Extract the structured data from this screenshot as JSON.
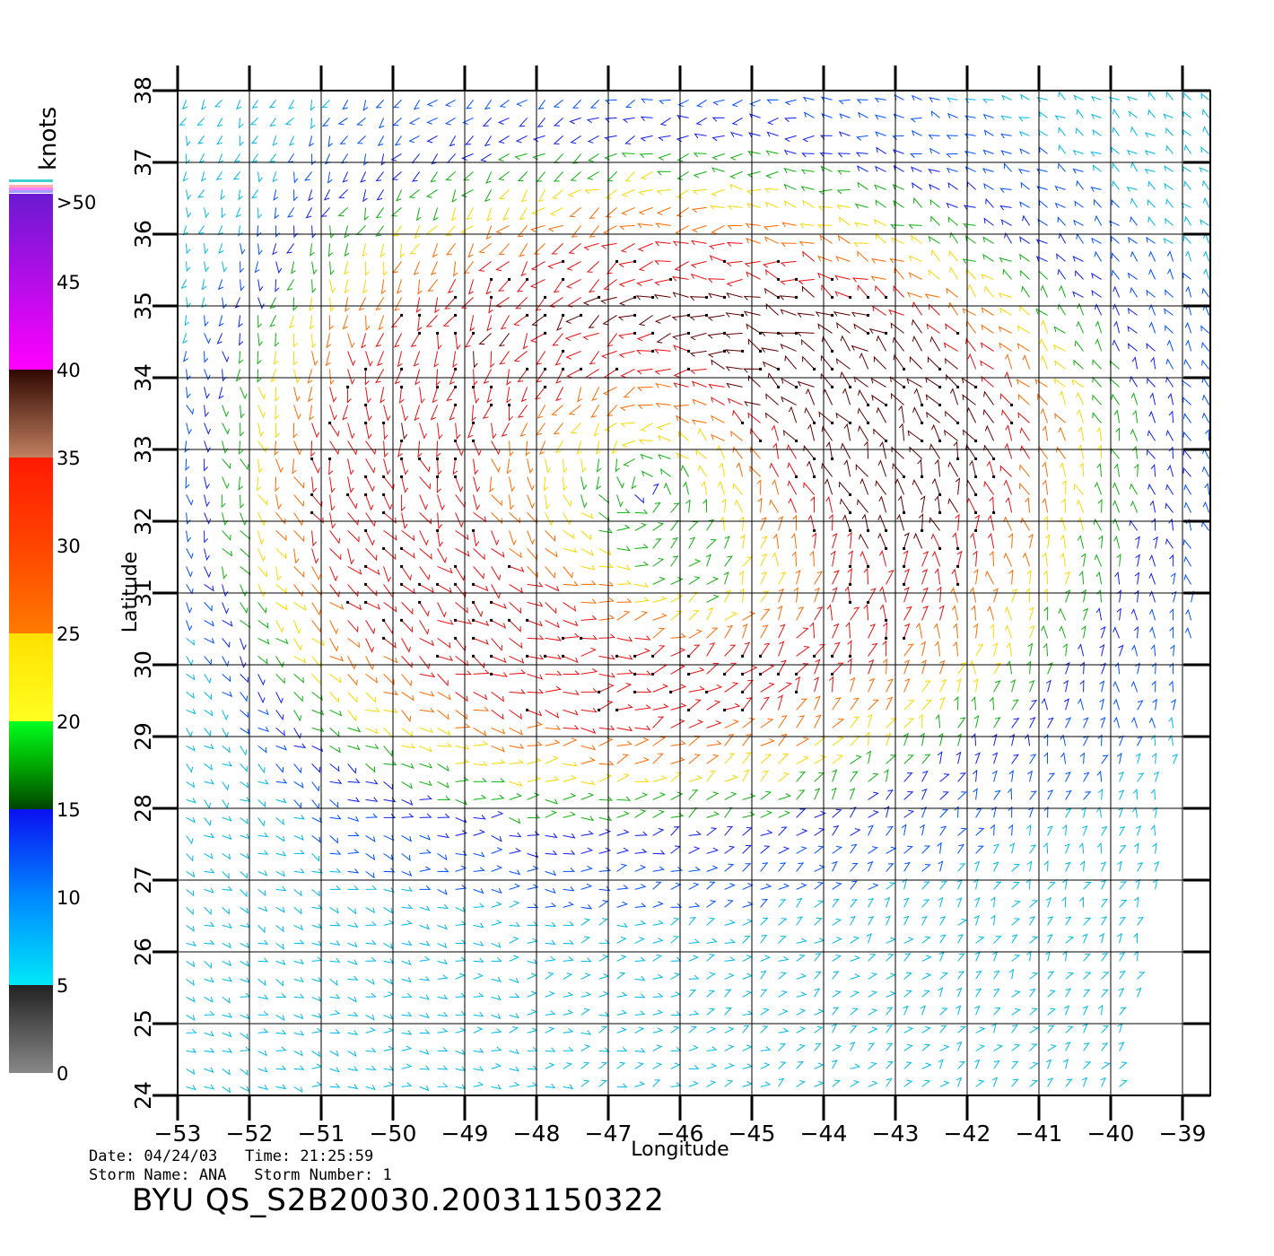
{
  "colorbar": {
    "unit": "knots",
    "top_label": ">50",
    "labels": [
      "0",
      "5",
      "10",
      "15",
      "20",
      "25",
      "30",
      "35",
      "40",
      "45"
    ],
    "colors": {
      "gray": "#555555",
      "cyan": "#00e8f8",
      "blue": "#0a10f0",
      "green": "#00a800",
      "yellow": "#ffe000",
      "orange": "#ff8000",
      "red": "#ff1a00",
      "brown": "#6a2a10",
      "magenta": "#e000e0",
      "purple": "#6a1ad0"
    }
  },
  "chart_data": {
    "type": "wind-vector-map",
    "xlabel": "Longitude",
    "ylabel": "Latitude",
    "xlim": [
      -53,
      -38.6
    ],
    "ylim": [
      24,
      38
    ],
    "xticks": [
      -53,
      -52,
      -51,
      -50,
      -49,
      -48,
      -47,
      -46,
      -45,
      -44,
      -43,
      -42,
      -41,
      -40,
      -39
    ],
    "yticks": [
      24,
      25,
      26,
      27,
      28,
      29,
      30,
      31,
      32,
      33,
      34,
      35,
      36,
      37,
      38
    ],
    "grid": true,
    "speed_units": "knots",
    "storm_center": {
      "lon": -46.5,
      "lat": 32.5
    },
    "swath_edge": {
      "lon_at_lat_24": -39.8,
      "lon_at_lat_32": -38.6
    }
  },
  "info": {
    "date_line": "Date: 04/24/03   Time: 21:25:59",
    "storm_line": "Storm Name: ANA   Storm Number: 1",
    "product": "BYU  QS_S2B20030.20031150322"
  }
}
